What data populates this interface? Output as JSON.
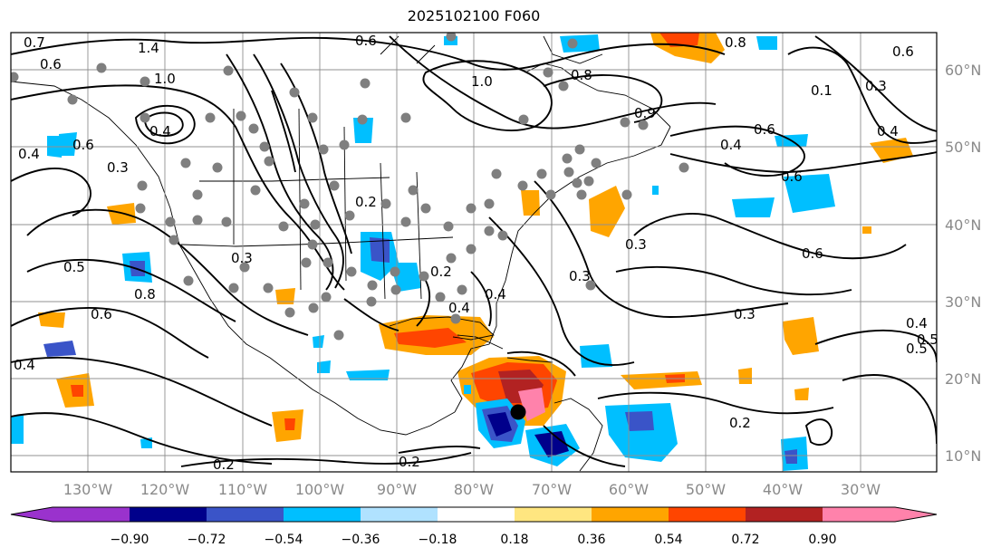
{
  "title": "2025102100 F060",
  "longitude_labels": [
    "130°W",
    "120°W",
    "110°W",
    "100°W",
    "90°W",
    "80°W",
    "70°W",
    "60°W",
    "50°W",
    "40°W",
    "30°W"
  ],
  "latitude_labels": [
    "60°N",
    "50°N",
    "40°N",
    "30°N",
    "20°N",
    "10°N"
  ],
  "colorbar": {
    "ticks": [
      "−0.90",
      "−0.72",
      "−0.54",
      "−0.36",
      "−0.18",
      "0.18",
      "0.36",
      "0.54",
      "0.72",
      "0.90"
    ],
    "colors": [
      "#9a32cd",
      "#00008b",
      "#3a54c8",
      "#00bfff",
      "#b0e2ff",
      "#ffffff",
      "#ffe680",
      "#ffa500",
      "#ff4500",
      "#b22222",
      "#ff82ab"
    ]
  },
  "contour_labels": [
    "0.7",
    "0.6",
    "1.4",
    "1.0",
    "0.4",
    "0.3",
    "0.4",
    "0.6",
    "0.6",
    "0.8",
    "1.0",
    "0.9",
    "0.8",
    "0.6",
    "0.1",
    "0.3",
    "0.4",
    "0.6",
    "0.5",
    "0.5",
    "0.3",
    "0.2",
    "0.4",
    "0.3",
    "0.6",
    "0.3",
    "0.2",
    "0.6",
    "0.3",
    "0.4",
    "0.2",
    "0.2",
    "0.2",
    "0.4",
    "0.5",
    "0.6",
    "0.4",
    "0.8",
    "0.4"
  ],
  "marker": "storm-center"
}
